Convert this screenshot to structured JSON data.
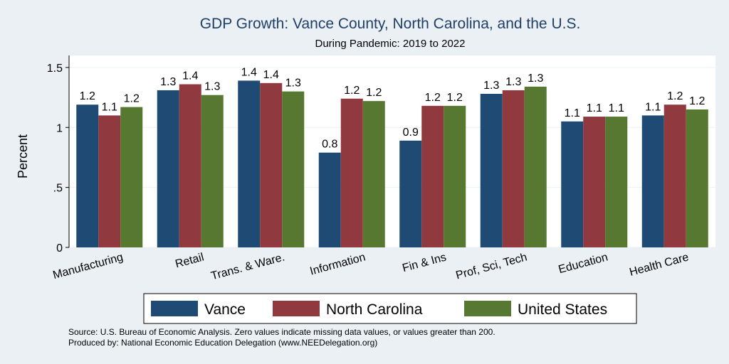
{
  "chart_data": {
    "type": "bar",
    "title": "GDP Growth: Vance County, North Carolina, and the U.S.",
    "subtitle": "During Pandemic: 2019 to 2022",
    "ylabel": "Percent",
    "xlabel": "",
    "ylim": [
      0,
      1.6
    ],
    "yticks": [
      0,
      0.5,
      1,
      1.5
    ],
    "ytick_labels": [
      "0",
      ".5",
      "1",
      "1.5"
    ],
    "categories": [
      "Manufacturing",
      "Retail",
      "Trans. & Ware.",
      "Information",
      "Fin & Ins",
      "Prof, Sci, Tech",
      "Education",
      "Health Care"
    ],
    "series": [
      {
        "name": "Vance",
        "color": "#1f4a73",
        "values": [
          1.19,
          1.31,
          1.39,
          0.79,
          0.89,
          1.28,
          1.05,
          1.1
        ],
        "labels": [
          "1.2",
          "1.3",
          "1.4",
          "0.8",
          "0.9",
          "1.3",
          "1.1",
          "1.1"
        ]
      },
      {
        "name": "North Carolina",
        "color": "#903a40",
        "values": [
          1.1,
          1.36,
          1.37,
          1.24,
          1.18,
          1.31,
          1.09,
          1.19
        ],
        "labels": [
          "1.1",
          "1.4",
          "1.4",
          "1.2",
          "1.2",
          "1.3",
          "1.1",
          "1.2"
        ]
      },
      {
        "name": "United States",
        "color": "#567830",
        "values": [
          1.17,
          1.27,
          1.3,
          1.22,
          1.18,
          1.34,
          1.09,
          1.15
        ],
        "labels": [
          "1.2",
          "1.3",
          "1.3",
          "1.2",
          "1.2",
          "1.3",
          "1.1",
          "1.2"
        ]
      }
    ],
    "grid": true,
    "legend_position": "bottom",
    "source_lines": [
      "Source: U.S. Bureau of Economic Analysis. Zero values indicate missing data values, or values greater than 200.",
      "Produced by: National Economic Education Delegation (www.NEEDelegation.org)"
    ]
  }
}
